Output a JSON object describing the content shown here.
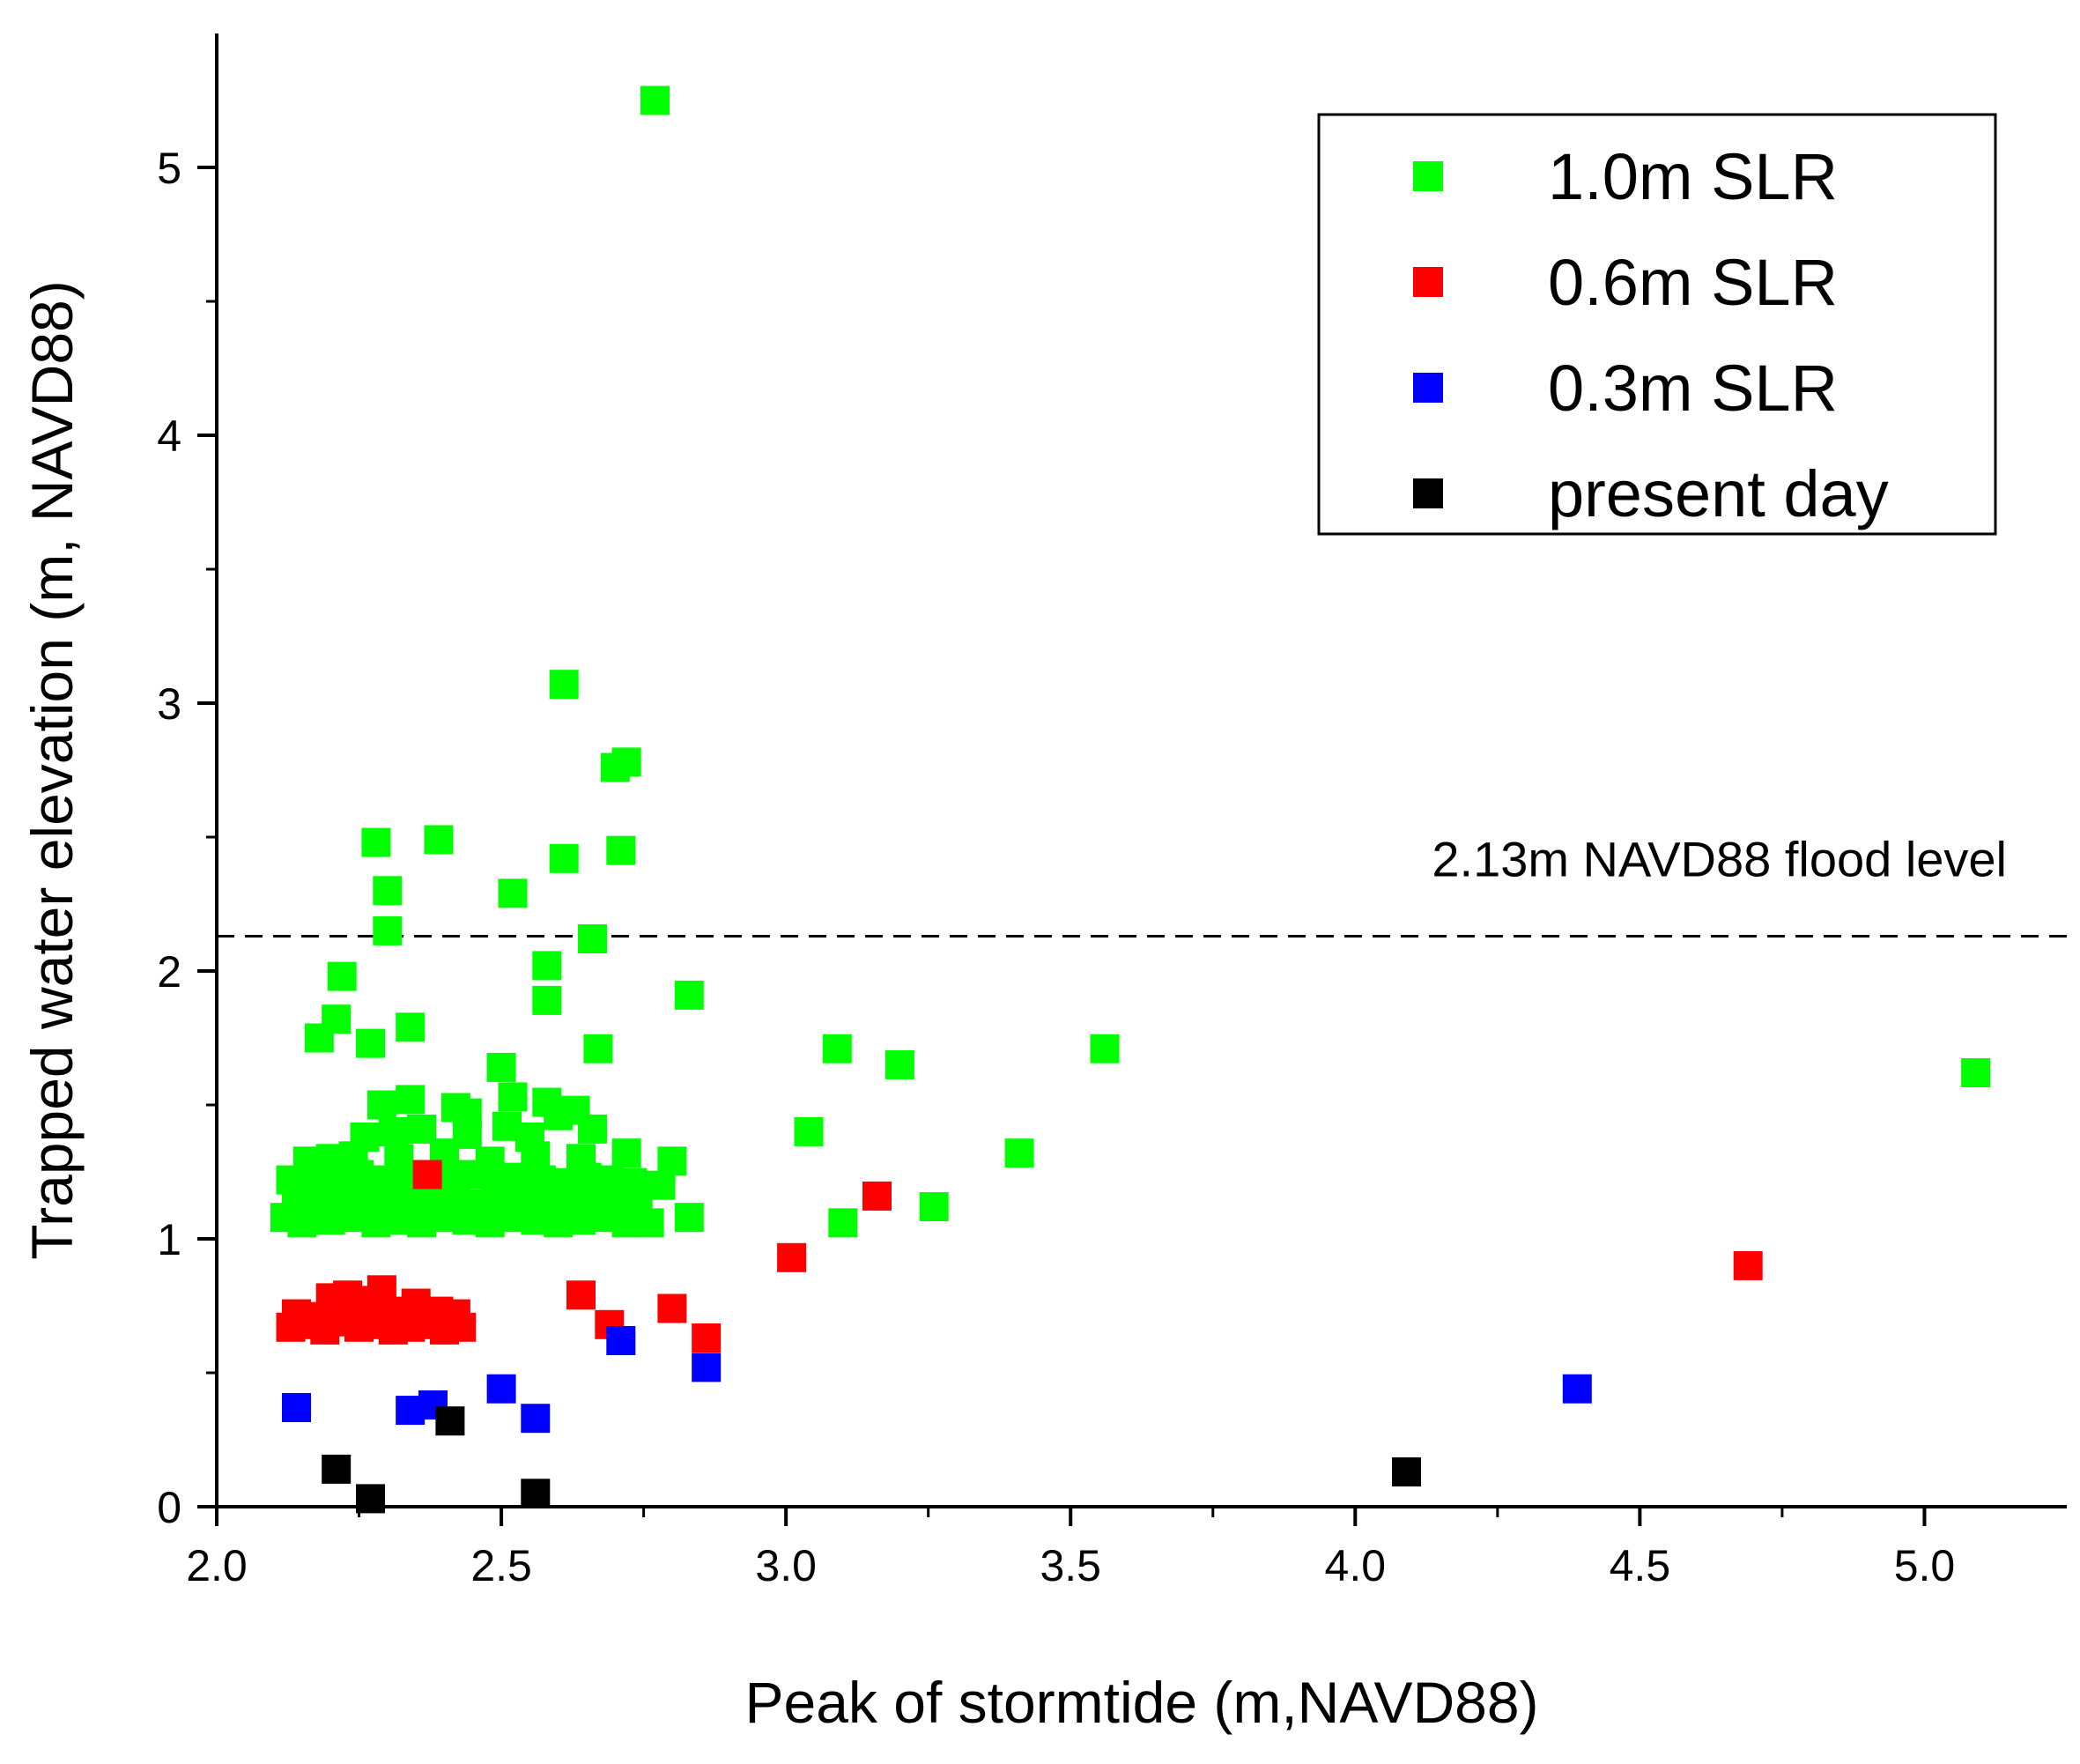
{
  "chart_data": {
    "type": "scatter",
    "title": "",
    "xlabel": "Peak of stormtide (m,NAVD88)",
    "ylabel": "Trapped water elevation (m, NAVD88)",
    "xlim": [
      2.0,
      5.25
    ],
    "ylim": [
      0,
      5.5
    ],
    "xticks": [
      2.0,
      2.5,
      3.0,
      3.5,
      4.0,
      4.5,
      5.0
    ],
    "xtick_labels": [
      "2.0",
      "2.5",
      "3.0",
      "3.5",
      "4.0",
      "4.5",
      "5.0"
    ],
    "yticks": [
      0,
      1,
      2,
      3,
      4,
      5
    ],
    "ytick_labels": [
      "0",
      "1",
      "2",
      "3",
      "4",
      "5"
    ],
    "grid": false,
    "legend_position": "top-right",
    "reference_line": {
      "y": 2.13,
      "label": "2.13m NAVD88 flood level",
      "style": "dashed"
    },
    "series": [
      {
        "name": "1.0m SLR",
        "color": "#00ff00",
        "marker": "square",
        "x": [
          2.77,
          2.61,
          2.72,
          2.7,
          2.28,
          2.39,
          2.61,
          2.71,
          2.52,
          2.3,
          2.3,
          2.66,
          2.58,
          2.22,
          2.58,
          2.83,
          2.21,
          2.34,
          2.18,
          2.27,
          2.67,
          2.5,
          3.09,
          3.2,
          3.56,
          5.09,
          3.04,
          3.41,
          3.26,
          3.1,
          2.76,
          2.83,
          2.12,
          2.15,
          2.2,
          2.24,
          2.28,
          2.32,
          2.36,
          2.4,
          2.44,
          2.48,
          2.52,
          2.56,
          2.6,
          2.64,
          2.68,
          2.72,
          2.14,
          2.18,
          2.22,
          2.26,
          2.3,
          2.34,
          2.38,
          2.42,
          2.46,
          2.5,
          2.54,
          2.58,
          2.62,
          2.66,
          2.7,
          2.74,
          2.13,
          2.17,
          2.21,
          2.25,
          2.29,
          2.33,
          2.37,
          2.41,
          2.45,
          2.49,
          2.53,
          2.57,
          2.61,
          2.65,
          2.69,
          2.73,
          2.78,
          2.16,
          2.24,
          2.32,
          2.4,
          2.48,
          2.56,
          2.64,
          2.72,
          2.8,
          2.26,
          2.31,
          2.36,
          2.44,
          2.51,
          2.55,
          2.66,
          2.29,
          2.34,
          2.42,
          2.52,
          2.58,
          2.63,
          2.2,
          2.44,
          2.6
        ],
        "y": [
          5.25,
          3.07,
          2.78,
          2.76,
          2.48,
          2.49,
          2.42,
          2.45,
          2.29,
          2.3,
          2.15,
          2.12,
          2.02,
          1.98,
          1.89,
          1.91,
          1.82,
          1.79,
          1.75,
          1.73,
          1.71,
          1.64,
          1.71,
          1.65,
          1.71,
          1.62,
          1.4,
          1.32,
          1.12,
          1.06,
          1.06,
          1.08,
          1.08,
          1.06,
          1.07,
          1.08,
          1.06,
          1.07,
          1.06,
          1.08,
          1.07,
          1.06,
          1.08,
          1.07,
          1.06,
          1.07,
          1.08,
          1.06,
          1.14,
          1.15,
          1.13,
          1.14,
          1.16,
          1.13,
          1.15,
          1.14,
          1.13,
          1.16,
          1.14,
          1.15,
          1.13,
          1.14,
          1.15,
          1.13,
          1.22,
          1.23,
          1.21,
          1.24,
          1.22,
          1.21,
          1.23,
          1.22,
          1.24,
          1.21,
          1.23,
          1.22,
          1.21,
          1.23,
          1.22,
          1.21,
          1.2,
          1.29,
          1.31,
          1.3,
          1.32,
          1.29,
          1.31,
          1.3,
          1.32,
          1.29,
          1.38,
          1.4,
          1.41,
          1.39,
          1.42,
          1.38,
          1.41,
          1.5,
          1.52,
          1.49,
          1.53,
          1.51,
          1.48,
          1.3,
          1.47,
          1.46
        ]
      },
      {
        "name": "0.6m SLR",
        "color": "#ff0000",
        "marker": "square",
        "x": [
          2.37,
          3.16,
          3.01,
          4.69,
          2.64,
          2.8,
          2.86,
          2.69,
          2.13,
          2.16,
          2.19,
          2.22,
          2.25,
          2.28,
          2.31,
          2.34,
          2.37,
          2.4,
          2.43,
          2.14,
          2.18,
          2.21,
          2.24,
          2.27,
          2.3,
          2.33,
          2.36,
          2.39,
          2.42,
          2.2,
          2.23,
          2.26,
          2.29,
          2.35
        ],
        "y": [
          1.24,
          1.16,
          0.93,
          0.9,
          0.79,
          0.74,
          0.63,
          0.68,
          0.67,
          0.68,
          0.66,
          0.69,
          0.67,
          0.68,
          0.66,
          0.67,
          0.68,
          0.66,
          0.67,
          0.72,
          0.71,
          0.73,
          0.72,
          0.71,
          0.73,
          0.72,
          0.71,
          0.73,
          0.72,
          0.78,
          0.79,
          0.77,
          0.81,
          0.76
        ]
      },
      {
        "name": "0.3m SLR",
        "color": "#0000ff",
        "marker": "square",
        "x": [
          2.14,
          2.34,
          2.38,
          2.5,
          2.56,
          2.71,
          2.86,
          4.39
        ],
        "y": [
          0.37,
          0.36,
          0.38,
          0.44,
          0.33,
          0.62,
          0.52,
          0.44
        ]
      },
      {
        "name": "present day",
        "color": "#000000",
        "marker": "square",
        "x": [
          2.21,
          2.27,
          2.41,
          2.56,
          4.09
        ],
        "y": [
          0.14,
          0.03,
          0.32,
          0.05,
          0.13
        ]
      }
    ]
  }
}
